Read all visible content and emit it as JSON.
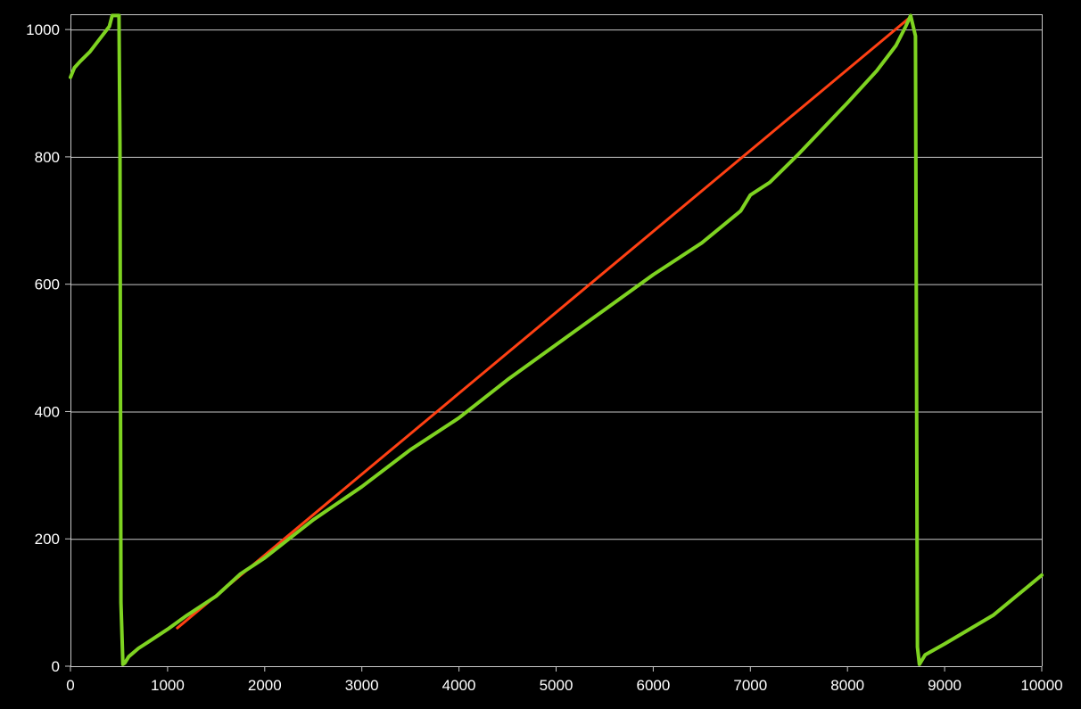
{
  "chart_data": {
    "type": "line",
    "title": "",
    "xlabel": "",
    "ylabel": "",
    "xlim": [
      0,
      10000
    ],
    "ylim": [
      0,
      1024
    ],
    "x_ticks": [
      0,
      1000,
      2000,
      3000,
      4000,
      5000,
      6000,
      7000,
      8000,
      9000,
      10000
    ],
    "y_ticks": [
      0,
      200,
      400,
      600,
      800,
      1000
    ],
    "x_tick_labels": [
      "0",
      "1000",
      "2000",
      "3000",
      "4000",
      "5000",
      "6000",
      "7000",
      "8000",
      "9000",
      "10000"
    ],
    "y_tick_labels": [
      "0",
      "200",
      "400",
      "600",
      "800",
      "1000"
    ],
    "grid": {
      "horizontal": true,
      "vertical": false
    },
    "background_color": "#000000",
    "grid_color": "#c8c8c8",
    "text_color": "#ffffff",
    "series": [
      {
        "color": "#ff4013",
        "x": [
          1100,
          8650
        ],
        "y": [
          60,
          1020
        ]
      },
      {
        "color": "#7ed321",
        "x": [
          0,
          40,
          100,
          200,
          300,
          400,
          430,
          500,
          510,
          520,
          540,
          560,
          600,
          700,
          800,
          1000,
          1200,
          1500,
          1750,
          2000,
          2500,
          3000,
          3500,
          4000,
          4500,
          5000,
          5500,
          6000,
          6500,
          6900,
          7000,
          7200,
          7500,
          8000,
          8300,
          8500,
          8600,
          8650,
          8700,
          8720,
          8740,
          8760,
          8800,
          9000,
          9500,
          10000
        ],
        "y": [
          925,
          940,
          950,
          965,
          985,
          1005,
          1022,
          1022,
          820,
          100,
          3,
          5,
          15,
          28,
          38,
          58,
          80,
          110,
          145,
          170,
          230,
          282,
          340,
          390,
          450,
          505,
          560,
          615,
          665,
          715,
          740,
          760,
          805,
          885,
          935,
          975,
          1005,
          1022,
          990,
          30,
          3,
          8,
          18,
          35,
          80,
          143
        ]
      }
    ]
  }
}
